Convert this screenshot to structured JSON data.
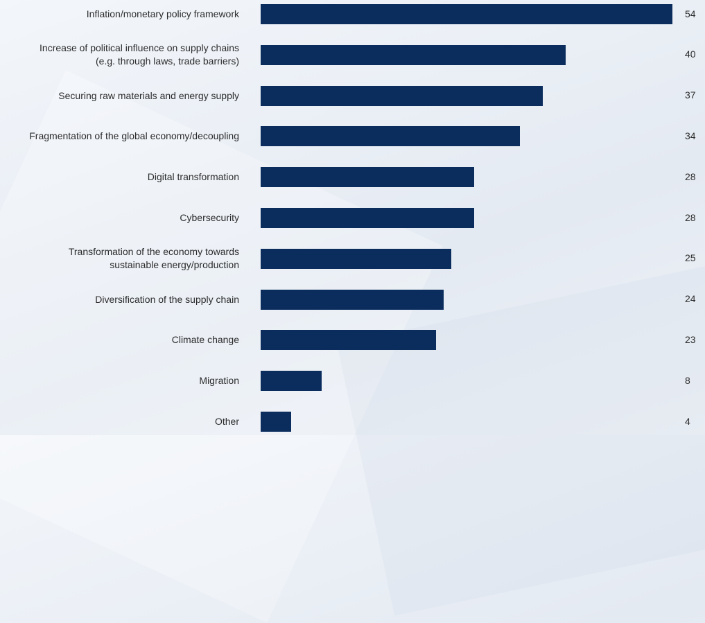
{
  "chart_data": {
    "type": "bar",
    "orientation": "horizontal",
    "categories": [
      "Inflation/monetary policy framework",
      "Increase of political influence on supply chains\n(e.g. through laws, trade barriers)",
      "Securing raw materials and energy supply",
      "Fragmentation of the global economy/decoupling",
      "Digital transformation",
      "Cybersecurity",
      "Transformation of the economy towards\nsustainable energy/production",
      "Diversification of the supply chain",
      "Climate change",
      "Migration",
      "Other"
    ],
    "values": [
      54,
      40,
      37,
      34,
      28,
      28,
      25,
      24,
      23,
      8,
      4
    ],
    "value_labels": [
      "54",
      "40",
      "37",
      "34",
      "28",
      "28",
      "25",
      "24",
      "23",
      "8",
      "4"
    ],
    "xlim": [
      0,
      54
    ],
    "grid": false,
    "legend": "none"
  },
  "colors": {
    "bar": "#0b2d5e",
    "text": "#2b2b2b"
  }
}
